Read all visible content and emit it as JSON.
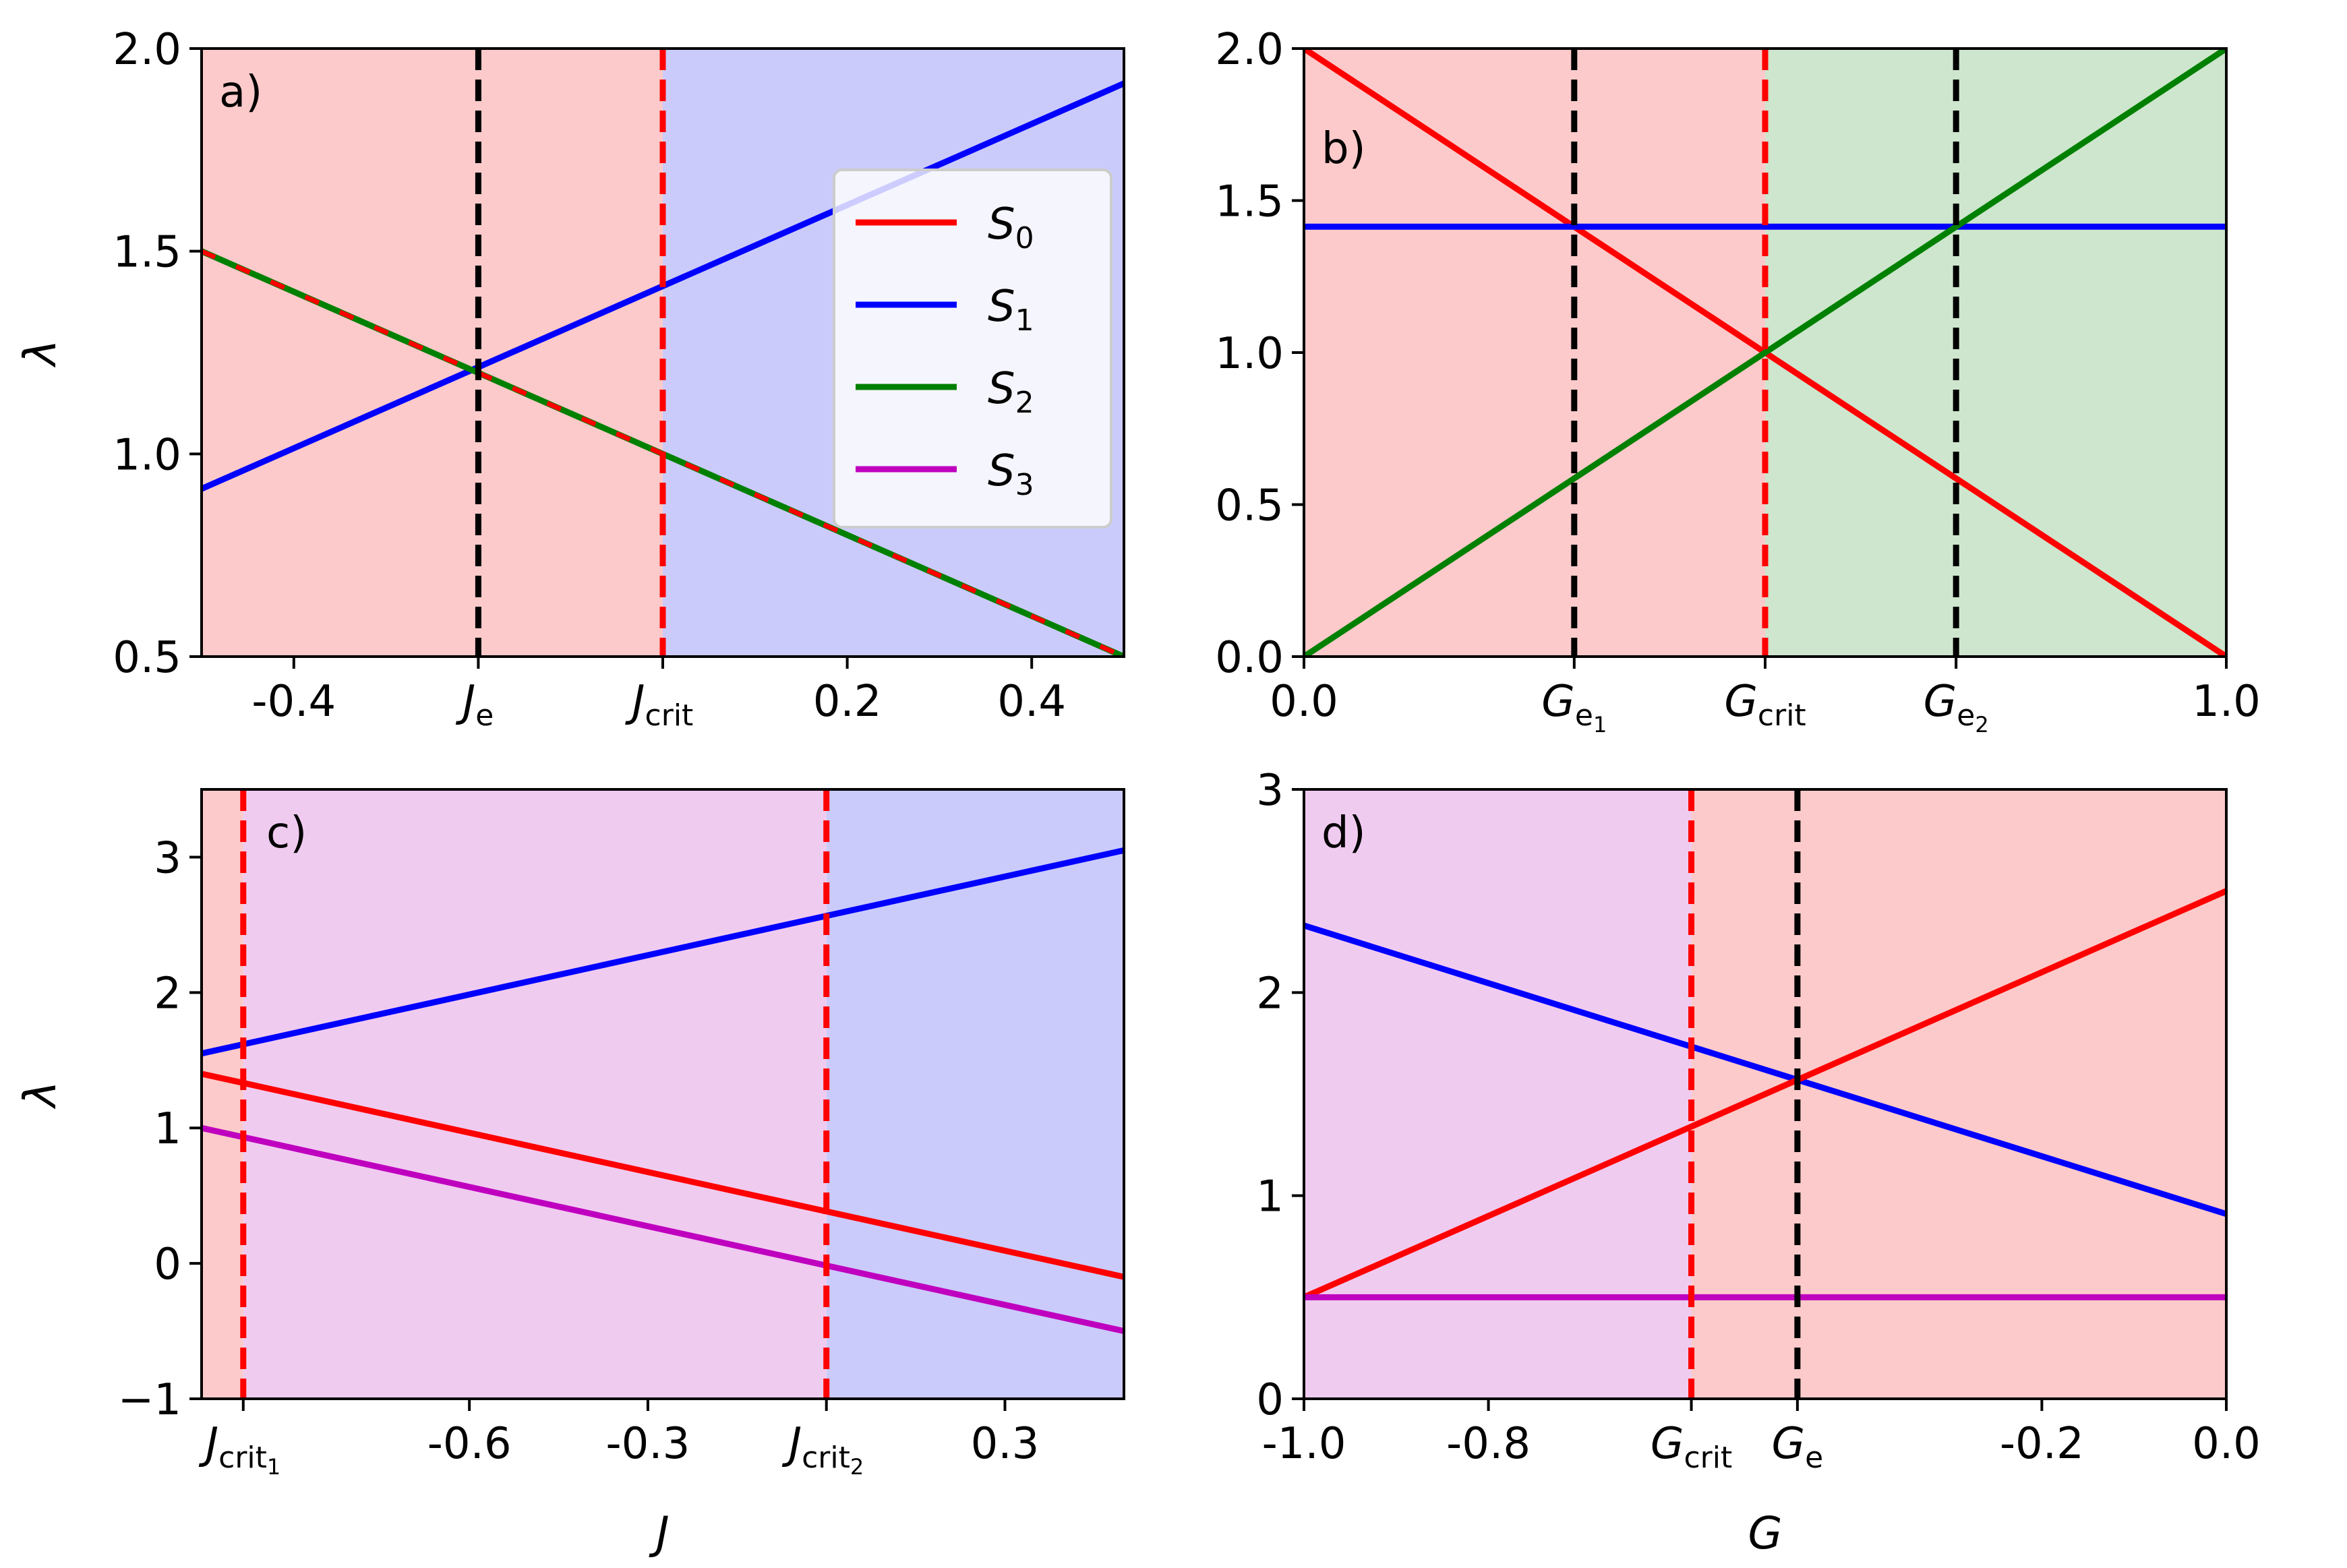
{
  "colors": {
    "S0": "#ff0000",
    "S1": "#0000ff",
    "S2": "#008000",
    "S3": "#bf00bf",
    "bg_red": "#fccaca",
    "bg_blue": "#cbcbfb",
    "bg_green": "#cde6cd",
    "bg_magenta": "#f0cbf0",
    "dash_black": "#000000",
    "dash_red": "#ff0000"
  },
  "legend": {
    "entries": [
      {
        "series": "S0",
        "label": "S",
        "sub": "0"
      },
      {
        "series": "S1",
        "label": "S",
        "sub": "1"
      },
      {
        "series": "S2",
        "label": "S",
        "sub": "2"
      },
      {
        "series": "S3",
        "label": "S",
        "sub": "3"
      }
    ]
  },
  "chart_data": [
    {
      "panel": "a)",
      "type": "line",
      "xlim": [
        -0.5,
        0.5
      ],
      "ylim": [
        0.5,
        2.0
      ],
      "xlabel": "",
      "ylabel": "λ",
      "xticks": [
        {
          "v": -0.4,
          "t": "-0.4"
        },
        {
          "v": -0.2,
          "t": "J",
          "sub": "e"
        },
        {
          "v": 0.0,
          "t": "J",
          "sub": "crit"
        },
        {
          "v": 0.2,
          "t": "0.2"
        },
        {
          "v": 0.4,
          "t": "0.4"
        }
      ],
      "yticks": [
        {
          "v": 0.5,
          "t": "0.5"
        },
        {
          "v": 1.0,
          "t": "1.0"
        },
        {
          "v": 1.5,
          "t": "1.5"
        },
        {
          "v": 2.0,
          "t": "2.0"
        }
      ],
      "regions": [
        {
          "from": -0.5,
          "to": 0.0,
          "color": "bg_red"
        },
        {
          "from": 0.0,
          "to": 0.5,
          "color": "bg_blue"
        }
      ],
      "vlines": [
        {
          "x": -0.2,
          "color": "dash_black"
        },
        {
          "x": 0.0,
          "color": "dash_red"
        }
      ],
      "series": [
        {
          "name": "S1",
          "x": [
            -0.5,
            0.5
          ],
          "y": [
            0.914,
            1.914
          ]
        },
        {
          "name": "S2",
          "x": [
            -0.5,
            0.5
          ],
          "y": [
            1.5,
            0.5
          ]
        },
        {
          "name": "S0",
          "x": [
            -0.5,
            0.5
          ],
          "y": [
            1.5,
            0.5
          ],
          "dashed": true
        }
      ],
      "show_legend": true
    },
    {
      "panel": "b)",
      "type": "line",
      "xlim": [
        0.0,
        1.0
      ],
      "ylim": [
        0.0,
        2.0
      ],
      "xlabel": "",
      "ylabel": "",
      "xticks": [
        {
          "v": 0.0,
          "t": "0.0"
        },
        {
          "v": 0.293,
          "t": "G",
          "sub": "e",
          "sub2": "1"
        },
        {
          "v": 0.5,
          "t": "G",
          "sub": "crit"
        },
        {
          "v": 0.707,
          "t": "G",
          "sub": "e",
          "sub2": "2"
        },
        {
          "v": 1.0,
          "t": "1.0"
        }
      ],
      "yticks": [
        {
          "v": 0.0,
          "t": "0.0"
        },
        {
          "v": 0.5,
          "t": "0.5"
        },
        {
          "v": 1.0,
          "t": "1.0"
        },
        {
          "v": 1.5,
          "t": "1.5"
        },
        {
          "v": 2.0,
          "t": "2.0"
        }
      ],
      "regions": [
        {
          "from": 0.0,
          "to": 0.5,
          "color": "bg_red"
        },
        {
          "from": 0.5,
          "to": 1.0,
          "color": "bg_green"
        }
      ],
      "vlines": [
        {
          "x": 0.293,
          "color": "dash_black"
        },
        {
          "x": 0.5,
          "color": "dash_red"
        },
        {
          "x": 0.707,
          "color": "dash_black"
        }
      ],
      "series": [
        {
          "name": "S0",
          "x": [
            0.0,
            1.0
          ],
          "y": [
            2.0,
            0.0
          ]
        },
        {
          "name": "S1",
          "x": [
            0.0,
            1.0
          ],
          "y": [
            1.414,
            1.414
          ]
        },
        {
          "name": "S2",
          "x": [
            0.0,
            1.0
          ],
          "y": [
            0.0,
            2.0
          ]
        }
      ],
      "show_legend": false
    },
    {
      "panel": "c)",
      "type": "line",
      "xlim": [
        -1.05,
        0.5
      ],
      "ylim": [
        -1,
        3.5
      ],
      "xlabel": "J",
      "ylabel": "λ",
      "xticks": [
        {
          "v": -0.98,
          "t": "J",
          "sub": "crit",
          "sub2": "1"
        },
        {
          "v": -0.6,
          "t": "-0.6"
        },
        {
          "v": -0.3,
          "t": "-0.3"
        },
        {
          "v": 0.0,
          "t": "J",
          "sub": "crit",
          "sub2": "2"
        },
        {
          "v": 0.3,
          "t": "0.3"
        }
      ],
      "yticks": [
        {
          "v": -1,
          "t": "−1"
        },
        {
          "v": 0,
          "t": "0"
        },
        {
          "v": 1,
          "t": "1"
        },
        {
          "v": 2,
          "t": "2"
        },
        {
          "v": 3,
          "t": "3"
        }
      ],
      "regions": [
        {
          "from": -1.05,
          "to": -0.98,
          "color": "bg_red"
        },
        {
          "from": -0.98,
          "to": 0.0,
          "color": "bg_magenta"
        },
        {
          "from": 0.0,
          "to": 0.5,
          "color": "bg_blue"
        }
      ],
      "vlines": [
        {
          "x": -0.98,
          "color": "dash_red"
        },
        {
          "x": 0.0,
          "color": "dash_red"
        }
      ],
      "series": [
        {
          "name": "S1",
          "x": [
            -1.05,
            0.5
          ],
          "y": [
            1.55,
            3.05
          ]
        },
        {
          "name": "S0",
          "x": [
            -1.05,
            0.5
          ],
          "y": [
            1.4,
            -0.1
          ]
        },
        {
          "name": "S3",
          "x": [
            -1.05,
            0.5
          ],
          "y": [
            1.0,
            -0.5
          ]
        }
      ],
      "show_legend": false
    },
    {
      "panel": "d)",
      "type": "line",
      "xlim": [
        -1.0,
        0.0
      ],
      "ylim": [
        0,
        3
      ],
      "xlabel": "G",
      "ylabel": "",
      "xticks": [
        {
          "v": -1.0,
          "t": "-1.0"
        },
        {
          "v": -0.8,
          "t": "-0.8"
        },
        {
          "v": -0.58,
          "t": "G",
          "sub": "crit"
        },
        {
          "v": -0.465,
          "t": "G",
          "sub": "e"
        },
        {
          "v": -0.2,
          "t": "-0.2"
        },
        {
          "v": 0.0,
          "t": "0.0"
        }
      ],
      "yticks": [
        {
          "v": 0,
          "t": "0"
        },
        {
          "v": 1,
          "t": "1"
        },
        {
          "v": 2,
          "t": "2"
        },
        {
          "v": 3,
          "t": "3"
        }
      ],
      "regions": [
        {
          "from": -1.0,
          "to": -0.58,
          "color": "bg_magenta"
        },
        {
          "from": -0.58,
          "to": 0.0,
          "color": "bg_red"
        }
      ],
      "vlines": [
        {
          "x": -0.58,
          "color": "dash_red"
        },
        {
          "x": -0.465,
          "color": "dash_black"
        }
      ],
      "series": [
        {
          "name": "S1",
          "x": [
            -1.0,
            0.0
          ],
          "y": [
            2.33,
            0.91
          ]
        },
        {
          "name": "S0",
          "x": [
            -1.0,
            0.0
          ],
          "y": [
            0.5,
            2.5
          ]
        },
        {
          "name": "S3",
          "x": [
            -1.0,
            0.0
          ],
          "y": [
            0.5,
            0.5
          ]
        }
      ],
      "show_legend": false
    }
  ]
}
